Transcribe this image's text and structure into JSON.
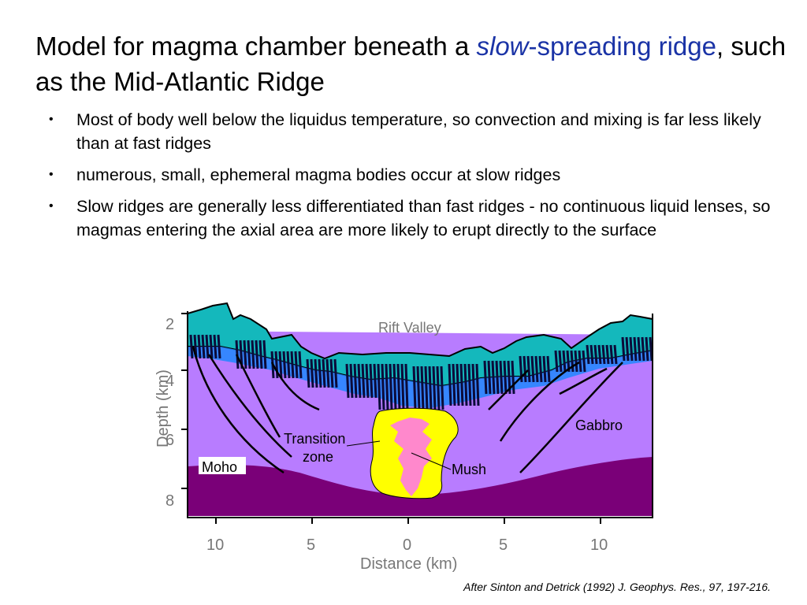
{
  "title": {
    "part1": "Model for magma chamber beneath a ",
    "slow": "slow",
    "part2": "-spreading ridge",
    "part3": ", such as the Mid-Atlantic Ridge"
  },
  "bullets": [
    "Most of body well below the liquidus temperature, so convection and mixing is far less likely than at fast ridges",
    "numerous, small, ephemeral magma bodies occur at slow ridges",
    "Slow ridges are generally less differentiated than fast ridges - no continuous liquid lenses, so magmas entering the axial area are more likely to erupt directly to the surface"
  ],
  "figure": {
    "labels": {
      "rift_valley": "Rift Valley",
      "gabbro": "Gabbro",
      "transition_line1": "Transition",
      "transition_line2": "zone",
      "mush": "Mush",
      "moho": "Moho"
    },
    "y_axis": {
      "label": "Depth (km)",
      "ticks": [
        "2",
        "4",
        "6",
        "8"
      ]
    },
    "x_axis": {
      "label": "Distance (km)",
      "ticks": [
        "10",
        "5",
        "0",
        "5",
        "10"
      ]
    },
    "colors": {
      "crust_top": "#14b8bc",
      "gabbro": "#b87cff",
      "mantle": "#7a0078",
      "transition_zone": "#ffff00",
      "mush": "#ff88cc",
      "dikes": "#0b0b3a",
      "blue_layer": "#1e88ff"
    }
  },
  "citation": "After Sinton and Detrick (1992) J. Geophys. Res., 97, 197-216."
}
